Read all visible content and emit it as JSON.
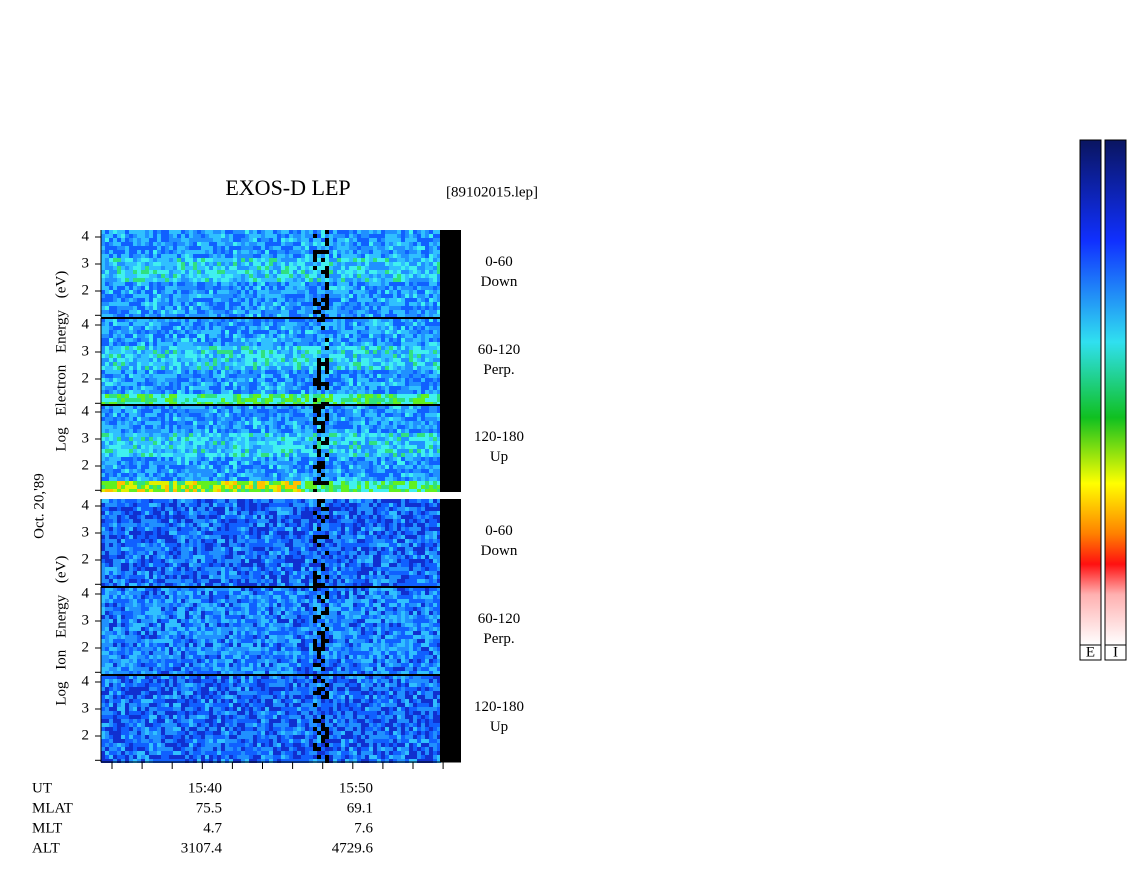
{
  "header": {
    "title": "EXOS-D LEP",
    "file": "[89102015.lep]"
  },
  "date": "Oct. 20,'89",
  "groups": [
    {
      "label": "Log Electron Energy (eV)",
      "panels": [
        {
          "range": "0-60",
          "direction": "Down"
        },
        {
          "range": "60-120",
          "direction": "Perp."
        },
        {
          "range": "120-180",
          "direction": "Up"
        }
      ]
    },
    {
      "label": "Log Ion Energy (eV)",
      "panels": [
        {
          "range": "0-60",
          "direction": "Down"
        },
        {
          "range": "60-120",
          "direction": "Perp."
        },
        {
          "range": "120-180",
          "direction": "Up"
        }
      ]
    }
  ],
  "yticks": [
    4,
    3,
    2
  ],
  "ephemeris": {
    "labels": [
      "UT",
      "MLAT",
      "MLT",
      "ALT"
    ],
    "columns": [
      [
        "15:40",
        75.5,
        4.7,
        3107.4
      ],
      [
        "15:50",
        69.1,
        7.6,
        4729.6
      ]
    ]
  },
  "colorbars": [
    "E",
    "I"
  ]
}
